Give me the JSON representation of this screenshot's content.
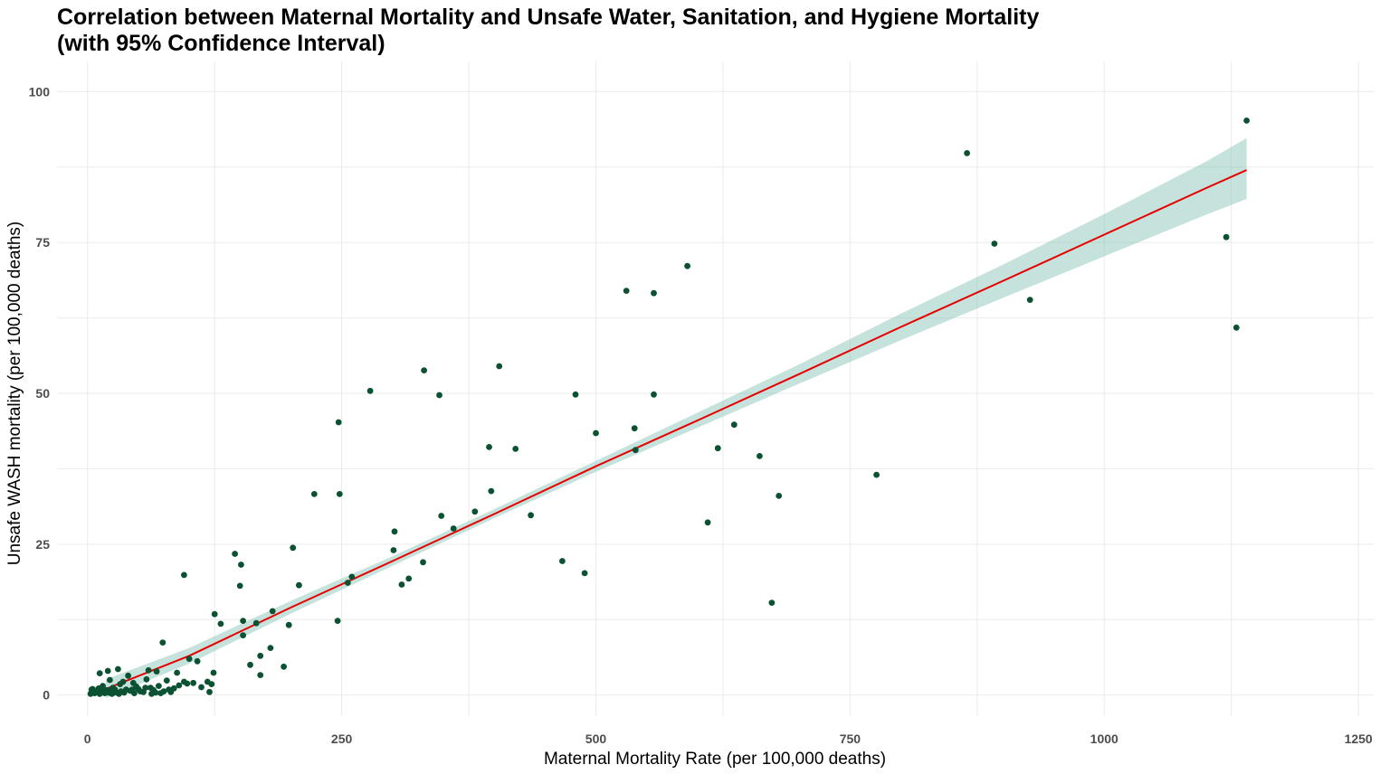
{
  "title_line1": "Correlation between Maternal Mortality and Unsafe Water, Sanitation, and Hygiene Mortality",
  "title_line2": "(with 95% Confidence Interval)",
  "colors": {
    "point": "#0b5232",
    "fit_line": "#e60000",
    "ci_band": "#7fbfb2",
    "grid": "#ebebeb"
  },
  "chart_data": {
    "type": "scatter",
    "xlabel": "Maternal Mortality Rate (per 100,000 deaths)",
    "ylabel": "Unsafe WASH mortality (per 100,000 deaths)",
    "xlim": [
      -30,
      1265
    ],
    "ylim": [
      -3.5,
      105
    ],
    "x_ticks": [
      0,
      250,
      500,
      750,
      1000,
      1250
    ],
    "y_ticks": [
      0,
      25,
      50,
      75,
      100
    ],
    "x_tick_labels": [
      "0",
      "250",
      "500",
      "750",
      "1000",
      "1250"
    ],
    "y_tick_labels": [
      "0",
      "25",
      "50",
      "75",
      "100"
    ],
    "grid": true,
    "legend": "none",
    "fit": {
      "method": "linear",
      "x": [
        18,
        100,
        200,
        300,
        400,
        500,
        600,
        700,
        800,
        900,
        1000,
        1100,
        1140
      ],
      "y": [
        1.0,
        6.5,
        14.5,
        22.2,
        30.0,
        37.9,
        45.5,
        53.2,
        61.0,
        68.6,
        76.3,
        84.0,
        87.0
      ],
      "lower": [
        -0.5,
        5.2,
        13.5,
        21.4,
        29.3,
        37.0,
        44.3,
        51.6,
        58.8,
        65.8,
        72.7,
        79.6,
        82.2
      ],
      "upper": [
        2.6,
        7.8,
        15.6,
        23.0,
        30.8,
        38.8,
        46.8,
        54.8,
        63.2,
        71.3,
        79.7,
        88.4,
        92.3
      ]
    },
    "points": [
      [
        1140,
        95.2
      ],
      [
        865,
        89.8
      ],
      [
        892,
        74.8
      ],
      [
        1120,
        75.9
      ],
      [
        927,
        65.5
      ],
      [
        1130,
        60.9
      ],
      [
        590,
        71.1
      ],
      [
        530,
        67.0
      ],
      [
        557,
        66.6
      ],
      [
        405,
        54.5
      ],
      [
        331,
        53.8
      ],
      [
        278,
        50.4
      ],
      [
        346,
        49.7
      ],
      [
        480,
        49.8
      ],
      [
        557,
        49.8
      ],
      [
        247,
        45.2
      ],
      [
        538,
        44.2
      ],
      [
        500,
        43.4
      ],
      [
        636,
        44.8
      ],
      [
        395,
        41.1
      ],
      [
        421,
        40.8
      ],
      [
        539,
        40.6
      ],
      [
        620,
        40.9
      ],
      [
        661,
        39.6
      ],
      [
        776,
        36.5
      ],
      [
        397,
        33.8
      ],
      [
        223,
        33.3
      ],
      [
        248,
        33.3
      ],
      [
        680,
        33.0
      ],
      [
        381,
        30.4
      ],
      [
        436,
        29.8
      ],
      [
        348,
        29.7
      ],
      [
        610,
        28.6
      ],
      [
        360,
        27.6
      ],
      [
        302,
        27.1
      ],
      [
        301,
        24.0
      ],
      [
        202,
        24.4
      ],
      [
        145,
        23.4
      ],
      [
        151,
        21.6
      ],
      [
        467,
        22.2
      ],
      [
        330,
        22.0
      ],
      [
        489,
        20.2
      ],
      [
        260,
        19.6
      ],
      [
        95,
        19.9
      ],
      [
        316,
        19.3
      ],
      [
        309,
        18.3
      ],
      [
        208,
        18.2
      ],
      [
        150,
        18.1
      ],
      [
        256,
        18.6
      ],
      [
        673,
        15.3
      ],
      [
        125,
        13.4
      ],
      [
        182,
        13.9
      ],
      [
        246,
        12.3
      ],
      [
        153,
        12.3
      ],
      [
        131,
        11.8
      ],
      [
        166,
        11.9
      ],
      [
        198,
        11.6
      ],
      [
        153,
        9.9
      ],
      [
        74,
        8.7
      ],
      [
        180,
        7.8
      ],
      [
        170,
        6.5
      ],
      [
        100,
        6.0
      ],
      [
        108,
        5.6
      ],
      [
        160,
        5.0
      ],
      [
        193,
        4.7
      ],
      [
        20,
        4.0
      ],
      [
        30,
        4.3
      ],
      [
        60,
        4.1
      ],
      [
        68,
        3.9
      ],
      [
        88,
        3.7
      ],
      [
        124,
        3.7
      ],
      [
        170,
        3.3
      ],
      [
        12,
        3.6
      ],
      [
        40,
        3.2
      ],
      [
        22,
        2.5
      ],
      [
        35,
        2.2
      ],
      [
        45,
        2.0
      ],
      [
        58,
        2.6
      ],
      [
        78,
        2.4
      ],
      [
        95,
        2.2
      ],
      [
        104,
        2.0
      ],
      [
        118,
        2.2
      ],
      [
        5,
        1.0
      ],
      [
        10,
        0.6
      ],
      [
        15,
        1.5
      ],
      [
        25,
        1.2
      ],
      [
        28,
        0.5
      ],
      [
        32,
        1.8
      ],
      [
        38,
        0.9
      ],
      [
        48,
        1.4
      ],
      [
        52,
        0.6
      ],
      [
        62,
        1.2
      ],
      [
        65,
        0.8
      ],
      [
        70,
        1.5
      ],
      [
        72,
        0.3
      ],
      [
        80,
        0.9
      ],
      [
        85,
        1.1
      ],
      [
        90,
        1.6
      ],
      [
        98,
        1.9
      ],
      [
        112,
        1.3
      ],
      [
        122,
        1.8
      ],
      [
        3,
        0.2
      ],
      [
        6,
        0.4
      ],
      [
        8,
        0.7
      ],
      [
        12,
        0.2
      ],
      [
        14,
        0.5
      ],
      [
        17,
        0.3
      ],
      [
        19,
        0.8
      ],
      [
        21,
        0.4
      ],
      [
        24,
        0.2
      ],
      [
        27,
        0.9
      ],
      [
        30,
        0.3
      ],
      [
        33,
        0.6
      ],
      [
        36,
        0.4
      ],
      [
        42,
        0.7
      ],
      [
        46,
        0.3
      ],
      [
        55,
        0.5
      ],
      [
        63,
        0.2
      ],
      [
        67,
        0.4
      ],
      [
        75,
        0.6
      ],
      [
        82,
        0.5
      ],
      [
        120,
        0.5
      ],
      [
        4,
        0.9
      ],
      [
        7,
        0.3
      ],
      [
        11,
        1.1
      ],
      [
        16,
        0.6
      ],
      [
        23,
        0.8
      ],
      [
        26,
        0.4
      ],
      [
        31,
        0.2
      ],
      [
        44,
        0.9
      ],
      [
        50,
        1.0
      ],
      [
        57,
        1.2
      ]
    ]
  }
}
